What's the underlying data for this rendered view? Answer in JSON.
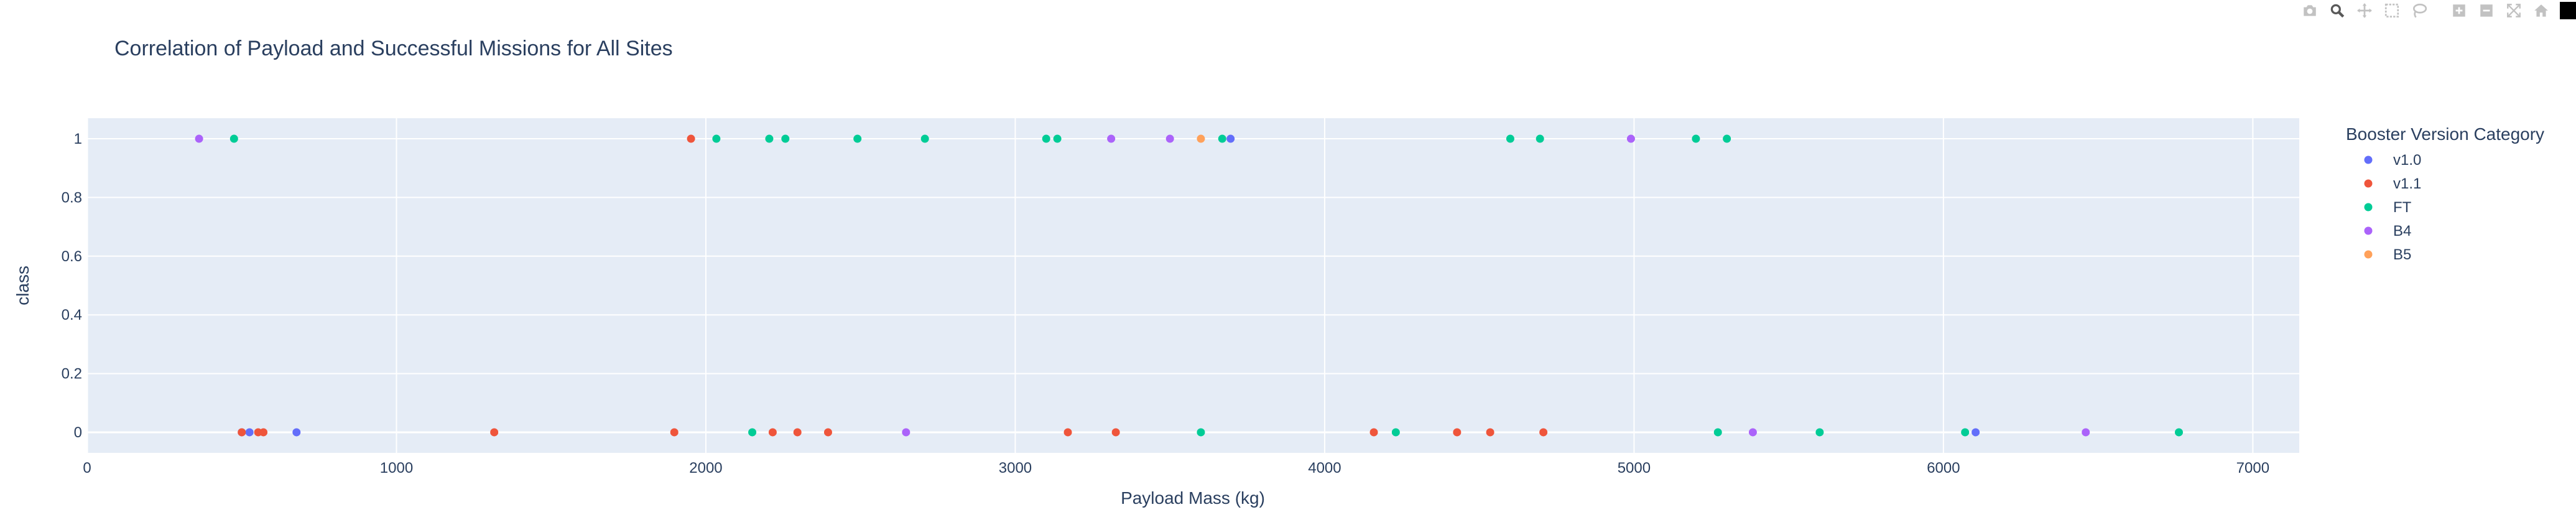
{
  "modebar": {
    "buttons": [
      "camera-icon",
      "zoom-icon",
      "pan-icon",
      "box-select-icon",
      "lasso-select-icon",
      "zoom-in-icon",
      "zoom-out-icon",
      "autoscale-icon",
      "reset-axes-icon"
    ],
    "icon_color": "#c2c2c2",
    "active_color": "#595959"
  },
  "chart_data": {
    "type": "scatter",
    "title": "Correlation of Payload and Successful Missions for All Sites",
    "xlabel": "Payload Mass (kg)",
    "ylabel": "class",
    "xlim": [
      0,
      7150
    ],
    "ylim": [
      -0.07,
      1.07
    ],
    "x_ticks": [
      0,
      1000,
      2000,
      3000,
      4000,
      5000,
      6000,
      7000
    ],
    "y_ticks": [
      0,
      0.2,
      0.4,
      0.6,
      0.8,
      1
    ],
    "x_tick_labels": [
      "0",
      "1000",
      "2000",
      "3000",
      "4000",
      "5000",
      "6000",
      "7000"
    ],
    "y_tick_labels": [
      "0",
      "0.2",
      "0.4",
      "0.6",
      "0.8",
      "1"
    ],
    "grid": true,
    "legend": {
      "title": "Booster Version Category",
      "position": "right"
    },
    "series": [
      {
        "name": "v1.0",
        "color": "#636efa",
        "points": [
          [
            500,
            0
          ],
          [
            525,
            0
          ],
          [
            677,
            0
          ],
          [
            3696,
            1
          ],
          [
            6104,
            0
          ]
        ]
      },
      {
        "name": "v1.1",
        "color": "#ef553b",
        "points": [
          [
            500,
            0
          ],
          [
            553,
            0
          ],
          [
            570,
            0
          ],
          [
            1316,
            0
          ],
          [
            1898,
            0
          ],
          [
            1952,
            1
          ],
          [
            2216,
            0
          ],
          [
            2296,
            0
          ],
          [
            2395,
            0
          ],
          [
            3170,
            0
          ],
          [
            3325,
            0
          ],
          [
            4159,
            0
          ],
          [
            4428,
            0
          ],
          [
            4535,
            0
          ],
          [
            4707,
            0
          ]
        ]
      },
      {
        "name": "FT",
        "color": "#00cc96",
        "points": [
          [
            475,
            1
          ],
          [
            2034,
            1
          ],
          [
            2150,
            0
          ],
          [
            2205,
            1
          ],
          [
            2257,
            1
          ],
          [
            2490,
            1
          ],
          [
            2708,
            1
          ],
          [
            3100,
            1
          ],
          [
            3136,
            1
          ],
          [
            3600,
            0
          ],
          [
            3669,
            1
          ],
          [
            4230,
            0
          ],
          [
            4600,
            1
          ],
          [
            4696,
            1
          ],
          [
            5200,
            1
          ],
          [
            5271,
            0
          ],
          [
            5300,
            1
          ],
          [
            5600,
            0
          ],
          [
            6070,
            0
          ],
          [
            6761,
            0
          ]
        ]
      },
      {
        "name": "B4",
        "color": "#ab63fa",
        "points": [
          [
            362,
            1
          ],
          [
            2647,
            0
          ],
          [
            3310,
            1
          ],
          [
            3500,
            1
          ],
          [
            4990,
            1
          ],
          [
            5384,
            0
          ],
          [
            6460,
            0
          ]
        ]
      },
      {
        "name": "B5",
        "color": "#ffa15a",
        "points": [
          [
            3600,
            1
          ]
        ]
      }
    ]
  }
}
